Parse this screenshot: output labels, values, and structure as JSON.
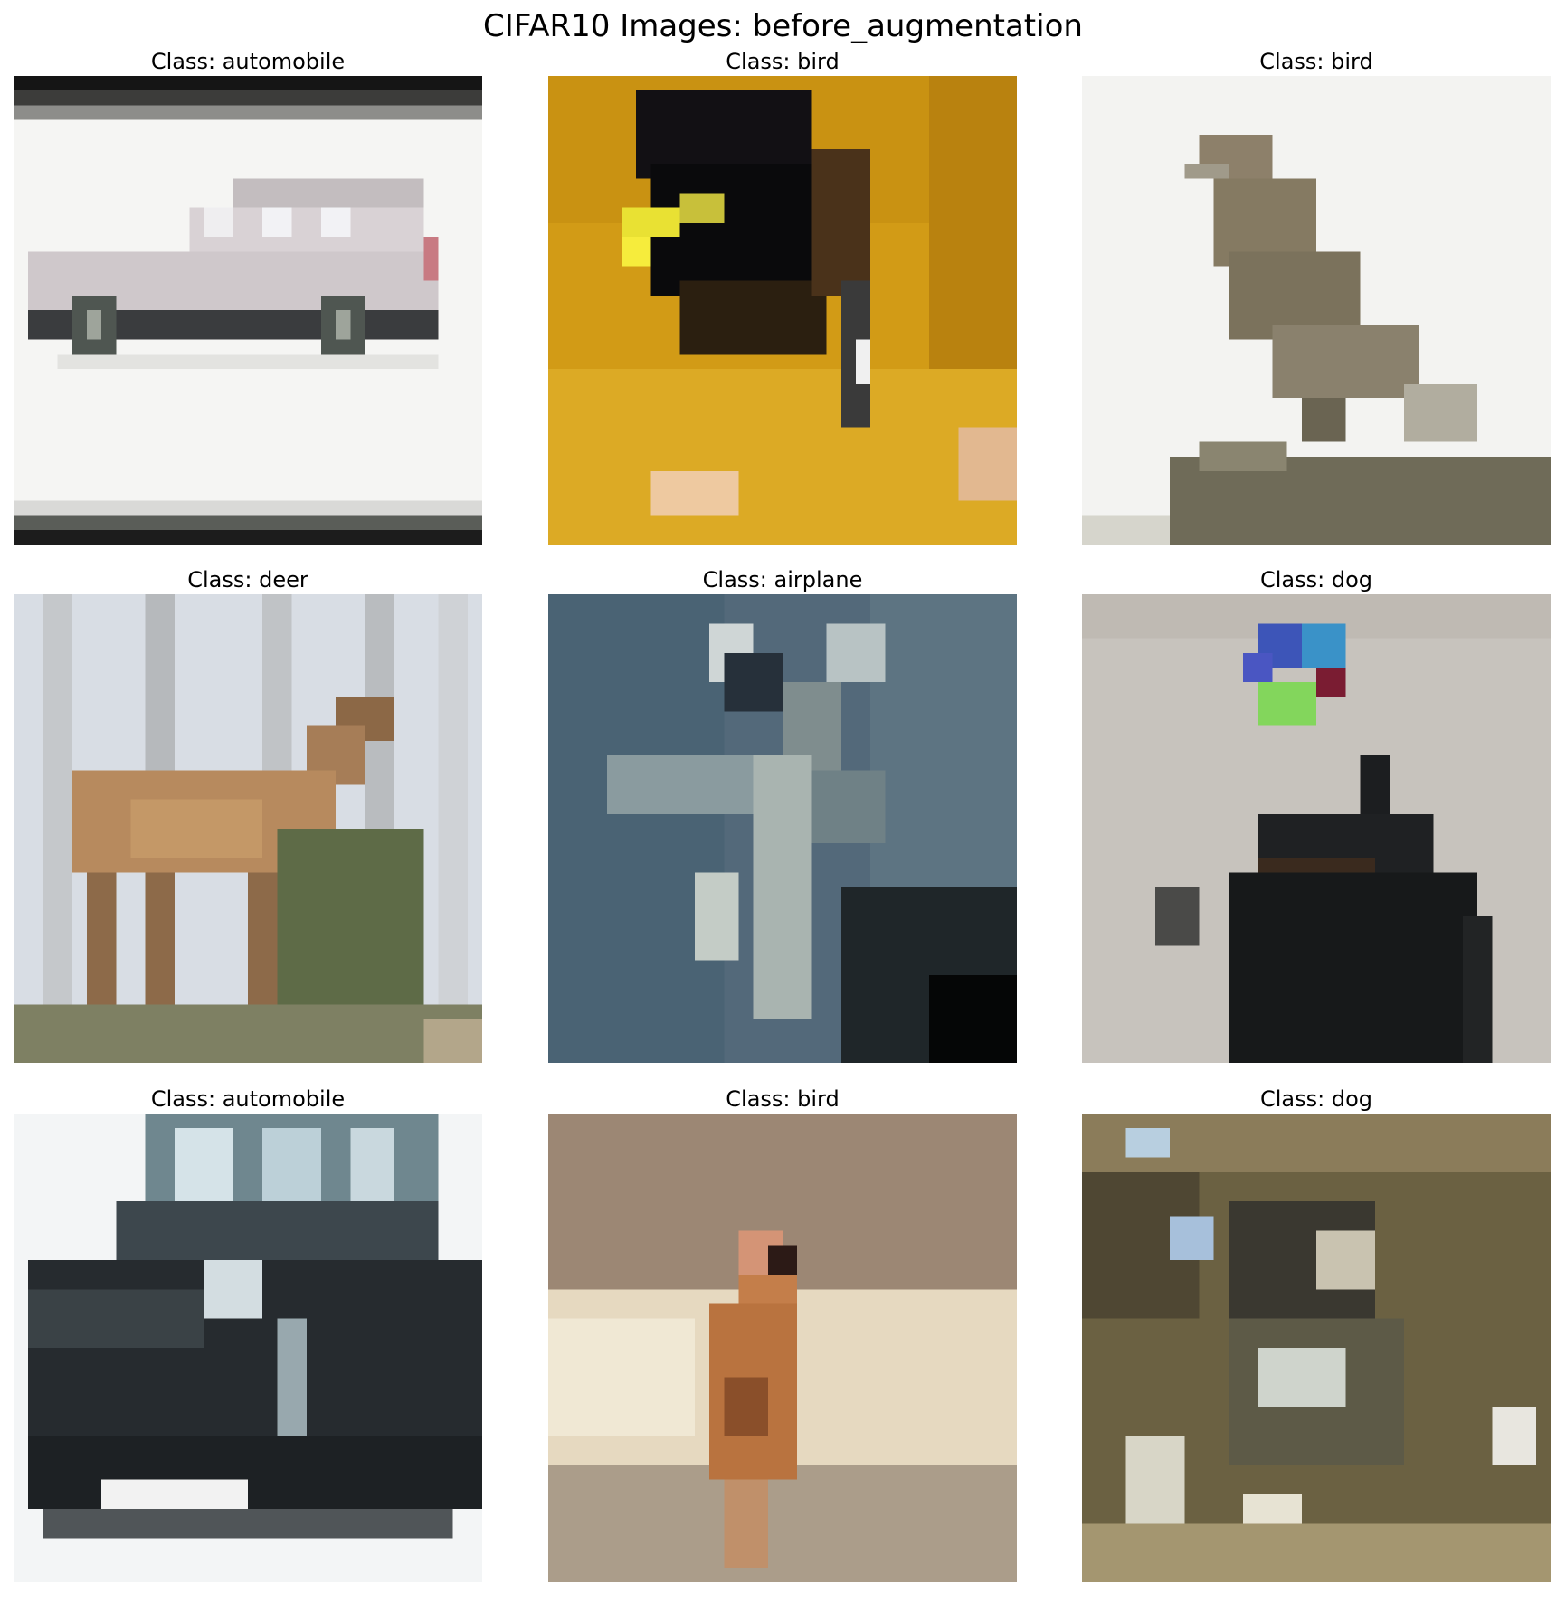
{
  "figure": {
    "title": "CIFAR10 Images: before_augmentation"
  },
  "panels": [
    {
      "label": "Class: automobile",
      "palette": [
        "#f4f4f2",
        "#c8c4c6",
        "#2a2e2f",
        "#8a8f8c"
      ],
      "icon": "car-image"
    },
    {
      "label": "Class: bird",
      "palette": [
        "#d9a41a",
        "#0b0b0d",
        "#f0d93a",
        "#e6c9a8"
      ],
      "icon": "bird-image"
    },
    {
      "label": "Class: bird",
      "palette": [
        "#f2f2f0",
        "#8c7f66",
        "#5d5a48",
        "#c6c3b5"
      ],
      "icon": "bird-image"
    },
    {
      "label": "Class: deer",
      "palette": [
        "#d6dbe2",
        "#b98a5c",
        "#5f6b4a",
        "#9aa19a"
      ],
      "icon": "deer-image"
    },
    {
      "label": "Class: airplane",
      "palette": [
        "#5a6f7c",
        "#9fb0b2",
        "#20282a",
        "#d0d7d3"
      ],
      "icon": "airplane-image"
    },
    {
      "label": "Class: dog",
      "palette": [
        "#c9c5bf",
        "#1a1c1d",
        "#3d5bc0",
        "#89d65a"
      ],
      "icon": "dog-image"
    },
    {
      "label": "Class: automobile",
      "palette": [
        "#f2f4f5",
        "#23282c",
        "#7f97a1",
        "#d4dde1"
      ],
      "icon": "car-image"
    },
    {
      "label": "Class: bird",
      "palette": [
        "#9c8774",
        "#e7dcc6",
        "#b9733f",
        "#4a2c1f"
      ],
      "icon": "bird-image"
    },
    {
      "label": "Class: dog",
      "palette": [
        "#6b6142",
        "#c8c2a8",
        "#2c2c26",
        "#a8c0da"
      ],
      "icon": "dog-image"
    }
  ]
}
